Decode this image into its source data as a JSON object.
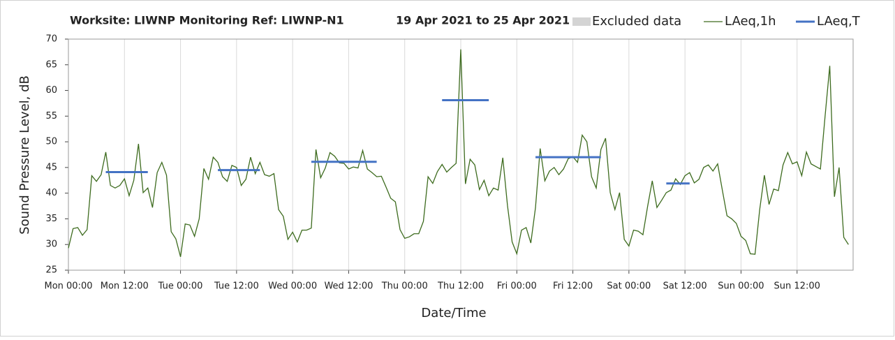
{
  "chart_data": {
    "type": "line",
    "title": "Worksite: LIWNP Monitoring Ref: LIWNP-N1",
    "subtitle": "19 Apr 2021 to 25 Apr 2021",
    "excluded_label": "Excluded data",
    "excluded_color": "#d4d4d4",
    "xlabel": "Date/Time",
    "ylabel": "Sound Pressure Level, dB",
    "xlim": [
      0,
      168
    ],
    "ylim": [
      25,
      70
    ],
    "yticks": [
      25,
      30,
      35,
      40,
      45,
      50,
      55,
      60,
      65,
      70
    ],
    "xticks": [
      {
        "value": 0,
        "label": "Mon 00:00"
      },
      {
        "value": 12,
        "label": "Mon 12:00"
      },
      {
        "value": 24,
        "label": "Tue 00:00"
      },
      {
        "value": 36,
        "label": "Tue 12:00"
      },
      {
        "value": 48,
        "label": "Wed 00:00"
      },
      {
        "value": 60,
        "label": "Wed 12:00"
      },
      {
        "value": 72,
        "label": "Thu 00:00"
      },
      {
        "value": 84,
        "label": "Thu 12:00"
      },
      {
        "value": 96,
        "label": "Fri 00:00"
      },
      {
        "value": 108,
        "label": "Fri 12:00"
      },
      {
        "value": 120,
        "label": "Sat 00:00"
      },
      {
        "value": 132,
        "label": "Sat 12:00"
      },
      {
        "value": 144,
        "label": "Sun 00:00"
      },
      {
        "value": 156,
        "label": "Sun 12:00"
      }
    ],
    "grid": "x",
    "series": [
      {
        "name": "LAeq,1h",
        "color": "#3d6b1e",
        "x": [
          0,
          1,
          2,
          3,
          4,
          5,
          6,
          7,
          8,
          9,
          10,
          11,
          12,
          13,
          14,
          15,
          16,
          17,
          18,
          19,
          20,
          21,
          22,
          23,
          24,
          25,
          26,
          27,
          28,
          29,
          30,
          31,
          32,
          33,
          34,
          35,
          36,
          37,
          38,
          39,
          40,
          41,
          42,
          43,
          44,
          45,
          46,
          47,
          48,
          49,
          50,
          51,
          52,
          53,
          54,
          55,
          56,
          57,
          58,
          59,
          60,
          61,
          62,
          63,
          64,
          65,
          66,
          67,
          68,
          69,
          70,
          71,
          72,
          73,
          74,
          75,
          76,
          77,
          78,
          79,
          80,
          81,
          82,
          83,
          84,
          85,
          86,
          87,
          88,
          89,
          90,
          91,
          92,
          93,
          94,
          95,
          96,
          97,
          98,
          99,
          100,
          101,
          102,
          103,
          104,
          105,
          106,
          107,
          108,
          109,
          110,
          111,
          112,
          113,
          114,
          115,
          116,
          117,
          118,
          119,
          120,
          121,
          122,
          123,
          124,
          125,
          126,
          127,
          128,
          129,
          130,
          131,
          132,
          133,
          134,
          135,
          136,
          137,
          138,
          139,
          140,
          141,
          142,
          143,
          144,
          145,
          146,
          147,
          148,
          149,
          150,
          151,
          152,
          153,
          154,
          155,
          156,
          157,
          158,
          159,
          160,
          161,
          162,
          163,
          164,
          165,
          166,
          167
        ],
        "values": [
          29.3,
          33.1,
          33.3,
          31.8,
          32.9,
          43.4,
          42.3,
          43.6,
          48,
          41.5,
          41,
          41.5,
          42.8,
          39.5,
          42.5,
          49.6,
          40.1,
          41,
          37.2,
          44,
          46,
          43.5,
          32.5,
          31.1,
          27.6,
          34,
          33.8,
          31.6,
          35,
          44.8,
          42.7,
          47,
          46,
          43.2,
          42.3,
          45.4,
          45,
          41.5,
          42.7,
          47,
          43.8,
          46,
          43.6,
          43.3,
          43.8,
          36.8,
          35.5,
          31,
          32.4,
          30.5,
          32.8,
          32.8,
          33.2,
          48.5,
          43,
          44.9,
          47.9,
          47.2,
          45.9,
          45.8,
          44.7,
          45.1,
          44.9,
          48.3,
          44.7,
          44,
          43.2,
          43.3,
          41.2,
          39,
          38.3,
          32.9,
          31.2,
          31.5,
          32.1,
          32.1,
          34.5,
          43.2,
          41.9,
          44.2,
          45.6,
          44.1,
          45,
          45.8,
          68,
          41.8,
          46.6,
          45.5,
          40.7,
          42.5,
          39.5,
          41,
          40.6,
          46.9,
          37.6,
          30.5,
          28.2,
          32.8,
          33.3,
          30.3,
          37.2,
          48.7,
          42.4,
          44.3,
          45,
          43.6,
          44.7,
          46.7,
          47.1,
          46,
          51.3,
          50,
          43.2,
          41,
          48.5,
          50.7,
          40.1,
          36.8,
          40.1,
          31,
          29.7,
          32.8,
          32.6,
          31.9,
          37.4,
          42.4,
          37.2,
          38.6,
          40.1,
          40.6,
          42.8,
          41.7,
          43.4,
          44,
          42,
          42.7,
          45,
          45.5,
          44.3,
          45.7,
          40.6,
          35.6,
          35,
          34.1,
          31.6,
          30.8,
          28.2,
          28.1,
          36.8,
          43.5,
          37.8,
          40.8,
          40.5,
          45.5,
          47.9,
          45.7,
          46.1,
          43.4,
          48,
          45.7,
          45.2,
          44.7,
          55,
          64.8,
          39.3,
          45,
          31.4,
          30
        ]
      },
      {
        "name": "LAeq,T",
        "color": "#4472c4",
        "x": [
          8,
          17,
          null,
          32,
          41,
          null,
          52,
          66,
          null,
          80,
          90,
          null,
          100,
          114,
          null,
          128,
          133
        ],
        "values": [
          44.1,
          44.1,
          null,
          44.5,
          44.5,
          null,
          46.1,
          46.1,
          null,
          58.1,
          58.1,
          null,
          47,
          47,
          null,
          41.9,
          41.9
        ]
      }
    ]
  }
}
